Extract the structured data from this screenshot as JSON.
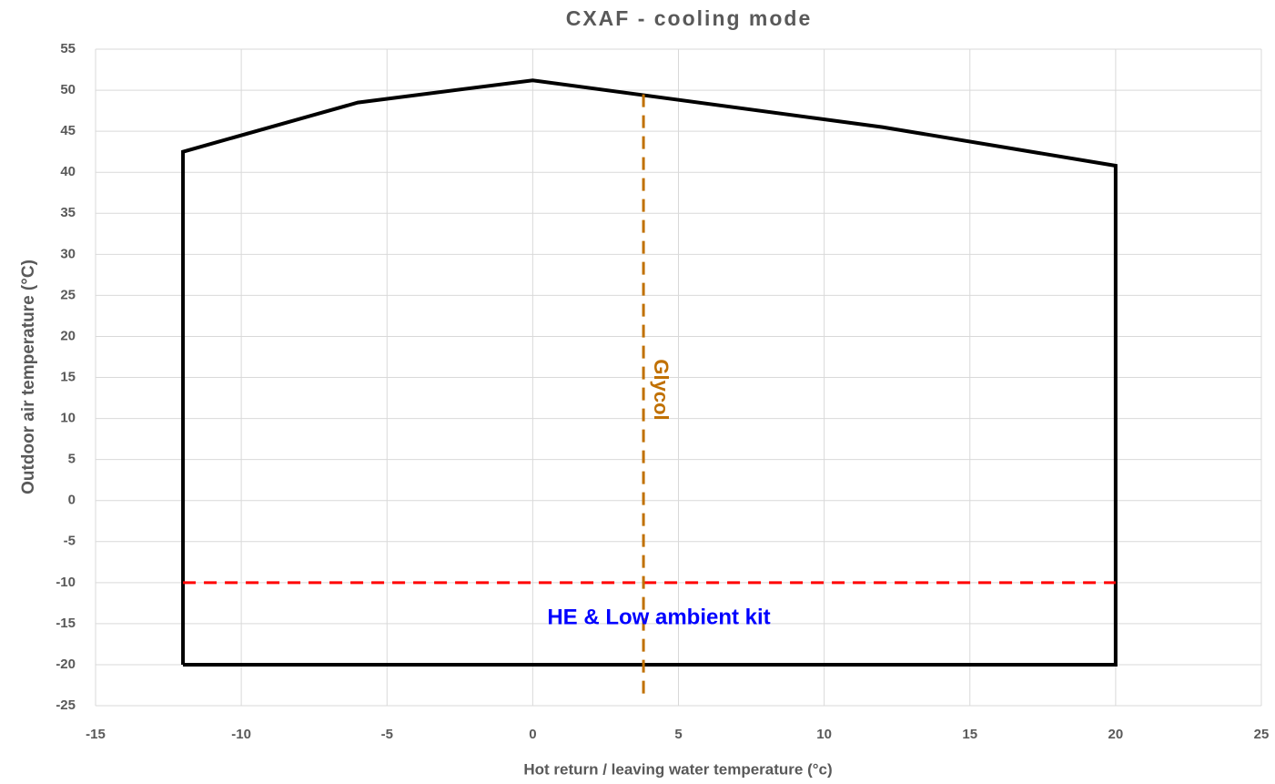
{
  "chart_data": {
    "type": "line",
    "title": "CXAF - cooling mode",
    "x_label": "Hot return / leaving water temperature (°c)",
    "y_label": "Outdoor air temperature (°C)",
    "xlim": [
      -15,
      25
    ],
    "xticks": [
      -15,
      -10,
      -5,
      0,
      5,
      10,
      15,
      20,
      25
    ],
    "ylim": [
      -25,
      55
    ],
    "yticks": [
      -25,
      -20,
      -15,
      -10,
      -5,
      0,
      5,
      10,
      15,
      20,
      25,
      30,
      35,
      40,
      45,
      50,
      55
    ],
    "grid": true,
    "series": [
      {
        "color": "#000000",
        "dash": false,
        "x": [
          -12,
          -12,
          -6,
          0,
          12,
          20,
          20,
          -12
        ],
        "values": [
          -20,
          42.5,
          48.5,
          51.2,
          45.5,
          40.8,
          -20,
          -20
        ]
      },
      {
        "color": "#ff0000",
        "dash": true,
        "x": [
          -12,
          20
        ],
        "values": [
          -10,
          -10
        ]
      },
      {
        "color": "#c07000",
        "dash": true,
        "x": [
          3.8,
          3.8
        ],
        "values": [
          49.5,
          -24
        ]
      }
    ],
    "annotations": [
      "Glycol",
      "HE & Low ambient kit"
    ]
  }
}
